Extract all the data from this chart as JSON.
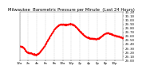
{
  "title": "Milwaukee  Barometric Pressure per Minute  (Last 24 Hours)",
  "line_color": "#ff0000",
  "bg_color": "#ffffff",
  "plot_bg_color": "#ffffff",
  "grid_color": "#aaaaaa",
  "ylim": [
    29.0,
    30.2
  ],
  "yticks": [
    29.0,
    29.1,
    29.2,
    29.3,
    29.4,
    29.5,
    29.6,
    29.7,
    29.8,
    29.9,
    30.0,
    30.1,
    30.2
  ],
  "marker_size": 0.8,
  "title_fontsize": 3.8,
  "tick_fontsize": 2.8,
  "num_points": 1440
}
